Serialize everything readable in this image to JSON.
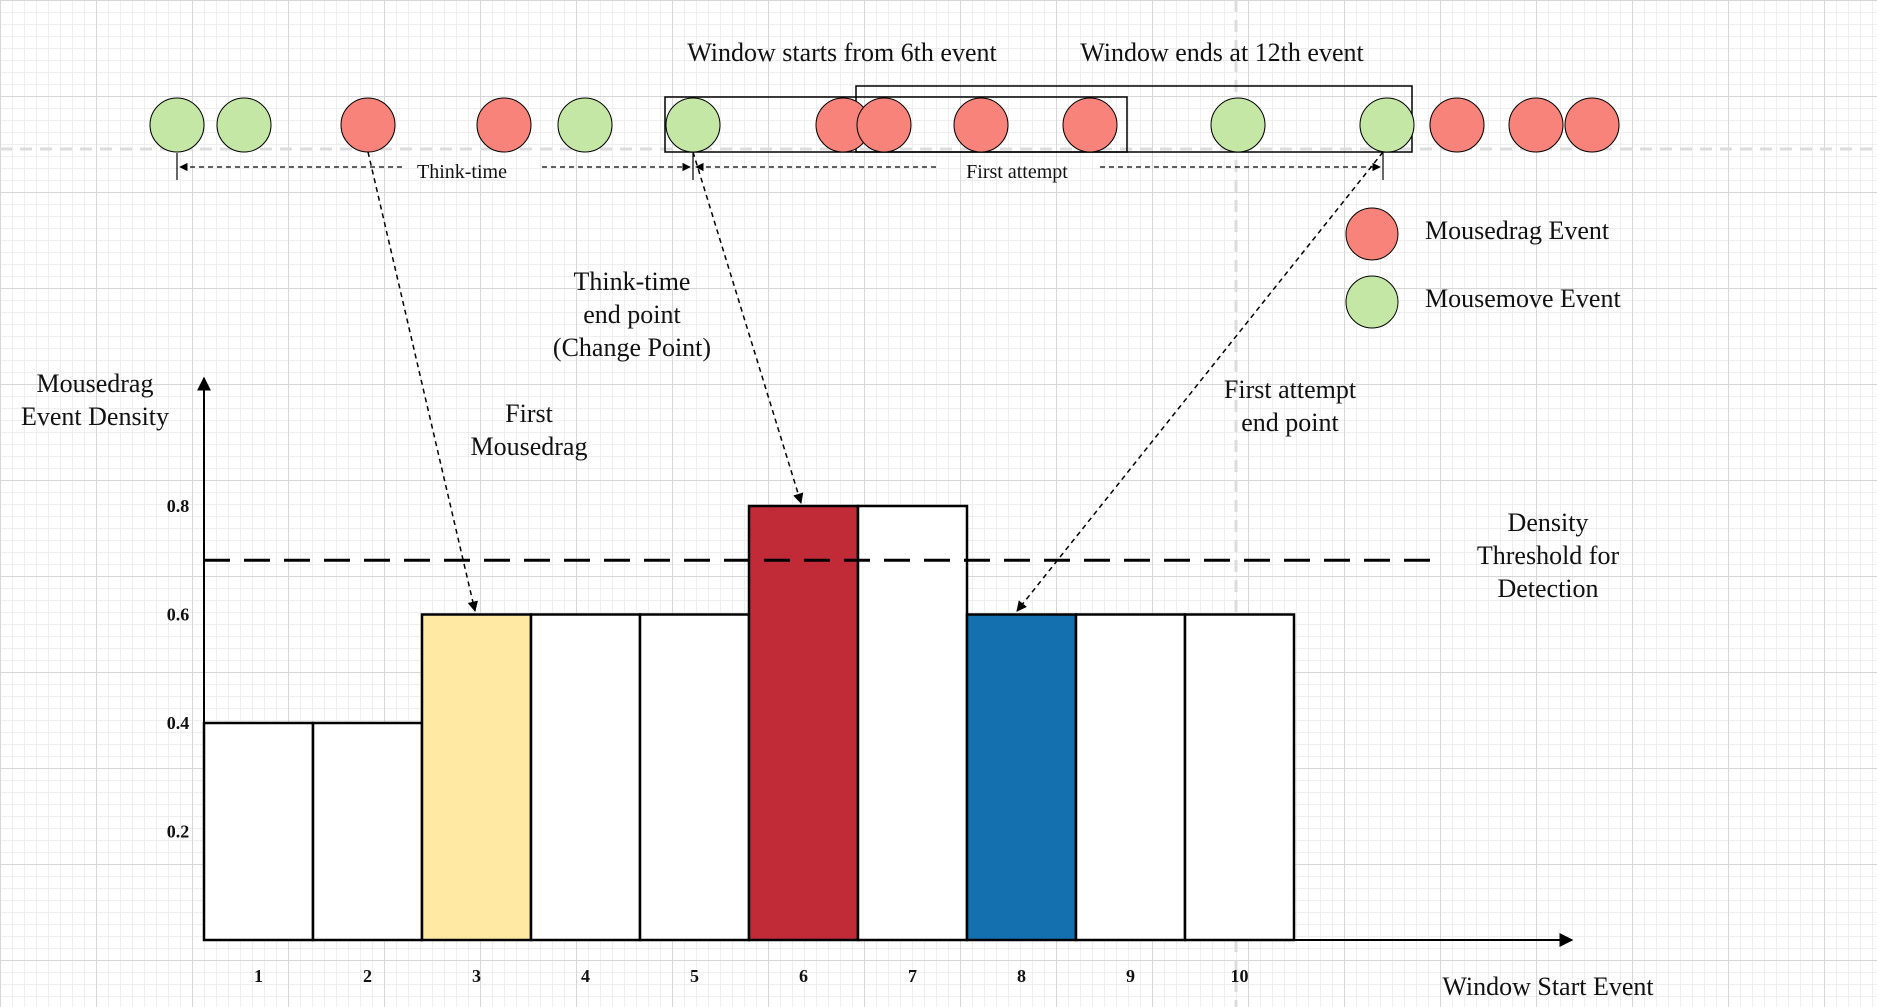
{
  "timeline": {
    "events": [
      "move",
      "move",
      "drag",
      "drag",
      "move",
      "move",
      "drag",
      "drag",
      "drag",
      "drag",
      "move",
      "move",
      "drag",
      "drag",
      "drag"
    ],
    "window_start_label": "Window starts from 6th event",
    "window_end_label": "Window ends at 12th event",
    "think_time_label": "Think-time",
    "first_attempt_label": "First attempt"
  },
  "legend": {
    "items": [
      {
        "type": "drag",
        "label": "Mousedrag Event",
        "color": "#f8837b"
      },
      {
        "type": "move",
        "label": "Mousemove Event",
        "color": "#c5e7a6"
      }
    ]
  },
  "annotations": {
    "first_mousedrag": [
      "First",
      "Mousedrag"
    ],
    "think_time_end": [
      "Think-time",
      "end point",
      "(Change Point)"
    ],
    "first_attempt_end": [
      "First attempt",
      "end point"
    ],
    "threshold": [
      "Density",
      "Threshold for",
      "Detection"
    ]
  },
  "chart_data": {
    "type": "bar",
    "categories": [
      "1",
      "2",
      "3",
      "4",
      "5",
      "6",
      "7",
      "8",
      "9",
      "10"
    ],
    "values": [
      0.4,
      0.4,
      0.6,
      0.6,
      0.6,
      0.8,
      0.8,
      0.6,
      0.6,
      0.6
    ],
    "bar_colors": [
      "#ffffff",
      "#ffffff",
      "#ffe9a3",
      "#ffffff",
      "#ffffff",
      "#c02b37",
      "#ffffff",
      "#1570b0",
      "#ffffff",
      "#ffffff"
    ],
    "ylabel": [
      "Mousedrag",
      "Event Density"
    ],
    "xlabel": "Window Start Event",
    "yticks": [
      0.2,
      0.4,
      0.6,
      0.8
    ],
    "ylim": [
      0,
      0.8
    ],
    "threshold": 0.7
  },
  "colors": {
    "drag": "#f8837b",
    "move": "#c5e7a6",
    "axis": "#000000"
  }
}
